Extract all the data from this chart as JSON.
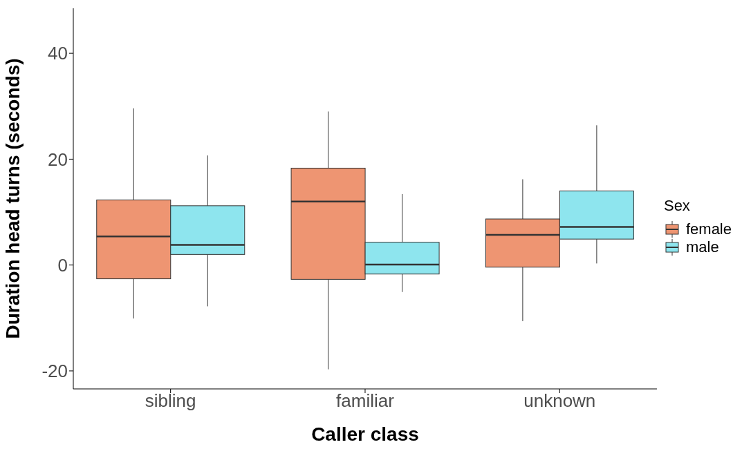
{
  "chart_data": {
    "type": "box",
    "xlabel": "Caller class",
    "ylabel": "Duration head turns (seconds)",
    "legend_title": "Sex",
    "legend": "right",
    "grid": false,
    "categories": [
      "sibling",
      "familiar",
      "unknown"
    ],
    "ylim": [
      -23.4,
      48.5
    ],
    "yticks": [
      -20,
      0,
      20,
      40
    ],
    "series": [
      {
        "name": "female",
        "color": "#ee9572",
        "boxes": [
          {
            "low": -10.1,
            "q1": -2.6,
            "median": 5.4,
            "q3": 12.3,
            "high": 29.6
          },
          {
            "low": -19.7,
            "q1": -2.7,
            "median": 12.0,
            "q3": 18.3,
            "high": 29.0
          },
          {
            "low": -10.6,
            "q1": -0.4,
            "median": 5.7,
            "q3": 8.7,
            "high": 16.2
          }
        ]
      },
      {
        "name": "male",
        "color": "#8ee5ee",
        "boxes": [
          {
            "low": -7.8,
            "q1": 2.0,
            "median": 3.8,
            "q3": 11.2,
            "high": 20.7
          },
          {
            "low": -5.1,
            "q1": -1.7,
            "median": 0.1,
            "q3": 4.3,
            "high": 13.4
          },
          {
            "low": 0.3,
            "q1": 4.9,
            "median": 7.2,
            "q3": 14.0,
            "high": 26.4
          }
        ]
      }
    ]
  }
}
